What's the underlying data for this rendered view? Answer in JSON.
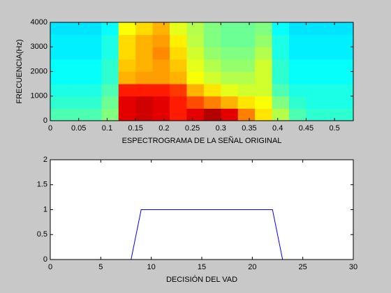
{
  "chart_data": [
    {
      "type": "heatmap",
      "xlabel": "ESPECTROGRAMA DE LA SEÑAL ORIGINAL",
      "ylabel": "FRECUENCIA(Hz)",
      "x": [
        0.015,
        0.045,
        0.075,
        0.105,
        0.135,
        0.165,
        0.195,
        0.225,
        0.255,
        0.285,
        0.315,
        0.345,
        0.375,
        0.405,
        0.435,
        0.465,
        0.495,
        0.525
      ],
      "y": [
        250,
        750,
        1250,
        1750,
        2250,
        2750,
        3250,
        3750
      ],
      "z": [
        [
          0.45,
          0.45,
          0.45,
          0.5,
          0.9,
          0.92,
          0.9,
          0.85,
          0.9,
          0.95,
          0.9,
          0.75,
          0.65,
          0.55,
          0.45,
          0.42,
          0.42,
          0.42
        ],
        [
          0.42,
          0.42,
          0.42,
          0.48,
          0.9,
          0.92,
          0.9,
          0.85,
          0.8,
          0.75,
          0.7,
          0.65,
          0.62,
          0.5,
          0.42,
          0.4,
          0.4,
          0.4
        ],
        [
          0.4,
          0.4,
          0.4,
          0.45,
          0.85,
          0.85,
          0.85,
          0.82,
          0.7,
          0.65,
          0.6,
          0.58,
          0.58,
          0.45,
          0.4,
          0.4,
          0.4,
          0.4
        ],
        [
          0.38,
          0.38,
          0.38,
          0.42,
          0.7,
          0.72,
          0.72,
          0.7,
          0.62,
          0.58,
          0.55,
          0.55,
          0.58,
          0.42,
          0.38,
          0.38,
          0.38,
          0.38
        ],
        [
          0.38,
          0.38,
          0.38,
          0.42,
          0.68,
          0.7,
          0.72,
          0.68,
          0.6,
          0.55,
          0.52,
          0.52,
          0.58,
          0.42,
          0.38,
          0.38,
          0.38,
          0.38
        ],
        [
          0.36,
          0.36,
          0.36,
          0.4,
          0.66,
          0.7,
          0.74,
          0.66,
          0.58,
          0.52,
          0.5,
          0.5,
          0.55,
          0.4,
          0.36,
          0.36,
          0.36,
          0.36
        ],
        [
          0.36,
          0.36,
          0.36,
          0.4,
          0.66,
          0.7,
          0.72,
          0.64,
          0.56,
          0.5,
          0.48,
          0.48,
          0.52,
          0.4,
          0.36,
          0.36,
          0.36,
          0.36
        ],
        [
          0.35,
          0.35,
          0.35,
          0.38,
          0.62,
          0.66,
          0.7,
          0.6,
          0.55,
          0.5,
          0.48,
          0.48,
          0.5,
          0.38,
          0.35,
          0.35,
          0.35,
          0.35
        ]
      ],
      "xlim": [
        0,
        0.533
      ],
      "ylim": [
        0,
        4000
      ],
      "xticks": [
        0,
        0.05,
        0.1,
        0.15,
        0.2,
        0.25,
        0.3,
        0.35,
        0.4,
        0.45,
        0.5
      ],
      "yticks": [
        0,
        1000,
        2000,
        3000,
        4000
      ]
    },
    {
      "type": "line",
      "xlabel": "DECISIÓN DEL VAD",
      "x": [
        0,
        1,
        2,
        3,
        4,
        5,
        6,
        7,
        8,
        9,
        10,
        11,
        12,
        13,
        14,
        15,
        16,
        17,
        18,
        19,
        20,
        21,
        22,
        23,
        24,
        25,
        26,
        27,
        28,
        29,
        30
      ],
      "series": [
        {
          "color": "#0000ff",
          "values": [
            0,
            0,
            0,
            0,
            0,
            0,
            0,
            0,
            0,
            1,
            1,
            1,
            1,
            1,
            1,
            1,
            1,
            1,
            1,
            1,
            1,
            1,
            1,
            0,
            0,
            0,
            0,
            0,
            0,
            0,
            0
          ]
        }
      ],
      "xlim": [
        0,
        30
      ],
      "ylim": [
        0,
        2
      ],
      "xticks": [
        0,
        5,
        10,
        15,
        20,
        25,
        30
      ],
      "yticks": [
        0,
        0.5,
        1,
        1.5,
        2
      ]
    }
  ]
}
